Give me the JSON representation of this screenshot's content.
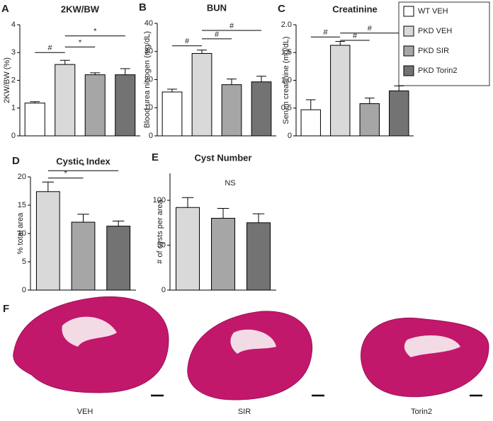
{
  "chart_data": [
    {
      "type": "bar",
      "panel": "A",
      "title": "2KW/BW",
      "y_label": "2KW/BW (%)",
      "values": [
        1.18,
        2.57,
        2.2,
        2.2
      ],
      "errors": [
        0.05,
        0.15,
        0.07,
        0.22
      ],
      "colors": [
        "#ffffff",
        "#d9d9d9",
        "#a6a6a6",
        "#737373"
      ],
      "ylim": [
        0,
        4
      ],
      "yticks": [
        0,
        1,
        2,
        3,
        4
      ],
      "brackets": [
        {
          "text": "#",
          "y": 3.0,
          "from": 0,
          "to": 1
        },
        {
          "text": "*",
          "y": 3.2,
          "from": 1,
          "to": 2
        },
        {
          "text": "*",
          "y": 3.6,
          "from": 1,
          "to": 3
        }
      ]
    },
    {
      "type": "bar",
      "panel": "B",
      "title": "BUN",
      "y_label": "Blood urea nitrogen (mg/dL)",
      "values": [
        15.6,
        29.3,
        18.2,
        19.2
      ],
      "errors": [
        1.0,
        1.2,
        2.0,
        2.0
      ],
      "colors": [
        "#ffffff",
        "#d9d9d9",
        "#a6a6a6",
        "#737373"
      ],
      "ylim": [
        0,
        40
      ],
      "yticks": [
        0,
        10,
        20,
        30,
        40
      ],
      "brackets": [
        {
          "text": "#",
          "y": 32,
          "from": 0,
          "to": 1
        },
        {
          "text": "#",
          "y": 34.5,
          "from": 1,
          "to": 2
        },
        {
          "text": "#",
          "y": 37.5,
          "from": 1,
          "to": 3
        }
      ]
    },
    {
      "type": "bar",
      "panel": "C",
      "title": "Creatinine",
      "y_label": "Serum creatinine (mg/dL)",
      "values": [
        0.47,
        1.63,
        0.58,
        0.81
      ],
      "errors": [
        0.18,
        0.07,
        0.1,
        0.09
      ],
      "colors": [
        "#ffffff",
        "#d9d9d9",
        "#a6a6a6",
        "#737373"
      ],
      "ylim": [
        0,
        2
      ],
      "yticks": [
        0,
        0.5,
        {
          "value": 1,
          "label": "1.0"
        },
        1.5,
        {
          "value": 2,
          "label": "2.0"
        }
      ],
      "brackets": [
        {
          "text": "#",
          "y": 1.78,
          "from": 0,
          "to": 1
        },
        {
          "text": "#",
          "y": 1.72,
          "from": 1,
          "to": 2
        },
        {
          "text": "#",
          "y": 1.85,
          "from": 1,
          "to": 3
        }
      ]
    },
    {
      "type": "bar",
      "panel": "D",
      "title": "Cystic Index",
      "y_label": "% total area",
      "values": [
        17.4,
        12.0,
        11.3
      ],
      "errors": [
        1.7,
        1.4,
        0.9
      ],
      "colors": [
        "#d9d9d9",
        "#a6a6a6",
        "#737373"
      ],
      "ylim": [
        0,
        20
      ],
      "yticks": [
        0,
        5,
        10,
        15,
        20
      ],
      "brackets": [
        {
          "text": "*",
          "y": 19.8,
          "from": 0,
          "to": 1
        },
        {
          "text": "*",
          "y": 21.1,
          "from": 0,
          "to": 2
        }
      ]
    },
    {
      "type": "bar",
      "panel": "E",
      "title": "Cyst Number",
      "y_label": "# of cysts per area",
      "values": [
        92,
        80,
        75
      ],
      "errors": [
        11,
        11,
        10
      ],
      "colors": [
        "#d9d9d9",
        "#a6a6a6",
        "#737373"
      ],
      "ylim": [
        0,
        130
      ],
      "yticks": [
        0,
        50,
        100
      ],
      "annotation": "NS",
      "brackets": []
    }
  ],
  "legend": [
    {
      "name": "WT VEH",
      "color": "#ffffff"
    },
    {
      "name": "PKD VEH",
      "color": "#d9d9d9"
    },
    {
      "name": "PKD SIR",
      "color": "#a6a6a6"
    },
    {
      "name": "PKD Torin2",
      "color": "#737373"
    }
  ],
  "images": {
    "panel": "F",
    "labels": [
      "VEH",
      "SIR",
      "Torin2"
    ]
  }
}
